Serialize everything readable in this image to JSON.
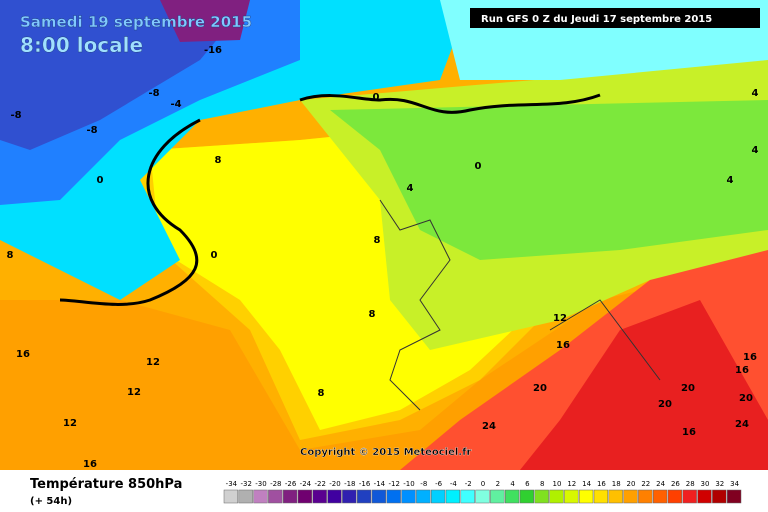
{
  "title": "Samedi 19 septembre 2015",
  "subtitle": "8:00 locale",
  "run_info": "Run GFS 0 Z du Jeudi 17 septembre 2015",
  "copyright": "Copyright © 2015 Meteociel.fr",
  "legend_title": "Température 850hPa",
  "legend_subtitle": "(+ 54h)",
  "scale": {
    "values": [
      -34,
      -32,
      -30,
      -28,
      -26,
      -24,
      -22,
      -20,
      -18,
      -16,
      -14,
      -12,
      -10,
      -8,
      -6,
      -4,
      -2,
      0,
      2,
      4,
      6,
      8,
      10,
      12,
      14,
      16,
      18,
      20,
      22,
      24,
      26,
      28,
      30,
      32,
      34
    ],
    "colors": [
      "#d0d0d0",
      "#b0b0b0",
      "#c080c0",
      "#a050a0",
      "#802080",
      "#700070",
      "#5a0090",
      "#4000a0",
      "#3020b0",
      "#2040c0",
      "#1058d8",
      "#0070f0",
      "#0090ff",
      "#00b0ff",
      "#00d0ff",
      "#00f0ff",
      "#40ffff",
      "#80ffe0",
      "#60f0a0",
      "#40e060",
      "#30d030",
      "#80e020",
      "#b0f000",
      "#d8f800",
      "#ffff00",
      "#ffe000",
      "#ffc000",
      "#ffa000",
      "#ff8000",
      "#ff6000",
      "#ff4000",
      "#f02020",
      "#d00000",
      "#b00000",
      "#800020"
    ]
  },
  "map_labels": [
    "-16",
    "-8",
    "-8",
    "-4",
    "-8",
    "0",
    "0",
    "0",
    "0",
    "4",
    "4",
    "4",
    "4",
    "8",
    "8",
    "8",
    "8",
    "8",
    "12",
    "12",
    "12",
    "12",
    "16",
    "16",
    "16",
    "16",
    "16",
    "16",
    "20",
    "20",
    "20",
    "20",
    "24",
    "24"
  ]
}
